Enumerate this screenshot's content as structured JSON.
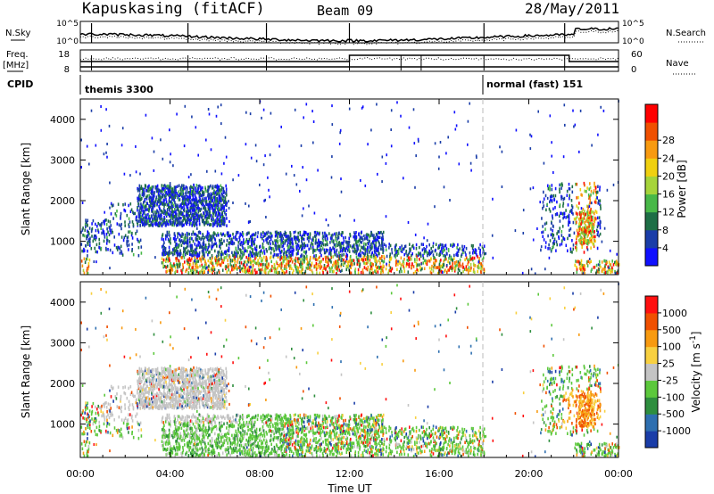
{
  "header": {
    "station": "Kapuskasing (fitACF)",
    "beam": "Beam 09",
    "date": "28/May/2011"
  },
  "panels": {
    "nsky_label": "N.Sky",
    "nsearch_label": "N.Search",
    "freq_label_top": "Freq.",
    "freq_label_unit": "[MHz]",
    "nave_label": "Nave",
    "cpid_label": "CPID",
    "nsky_ticks": [
      "10^5",
      "10^0"
    ],
    "nsearch_ticks": [
      "10^5",
      "10^0"
    ],
    "freq_ticks": [
      "18",
      "8"
    ],
    "nave_ticks": [
      "60",
      "0"
    ],
    "cpid_segments": [
      "themis 3300",
      "normal (fast) 151"
    ]
  },
  "chart_data": [
    {
      "type": "heatmap",
      "name": "power",
      "ylabel": "Slant Range [km]",
      "ylim": [
        180,
        4500
      ],
      "yticks": [
        "1000",
        "2000",
        "3000",
        "4000"
      ],
      "colorbar_label": "Power [dB]",
      "colorbar_ticks": [
        "4",
        "8",
        "12",
        "16",
        "20",
        "24",
        "28"
      ],
      "colorbar_colors": [
        "#1010ff",
        "#1a3da8",
        "#1e6e46",
        "#48b848",
        "#a6d43a",
        "#f0d010",
        "#f89a10",
        "#f05000",
        "#ff0000"
      ],
      "regions": [
        {
          "t": [
            0.0,
            0.4
          ],
          "r": [
            180,
            1500
          ],
          "density": 0.18
        },
        {
          "t": [
            0.3,
            1.3
          ],
          "r": [
            700,
            1500
          ],
          "density": 0.15
        },
        {
          "t": [
            1.3,
            2.7
          ],
          "r": [
            600,
            1900
          ],
          "density": 0.1
        },
        {
          "t": [
            2.5,
            6.5
          ],
          "r": [
            1350,
            2350
          ],
          "density": 0.45
        },
        {
          "t": [
            3.6,
            13.5
          ],
          "r": [
            180,
            1200
          ],
          "density": 0.28
        },
        {
          "t": [
            13.5,
            18.0
          ],
          "r": [
            180,
            900
          ],
          "density": 0.22
        },
        {
          "t": [
            20.5,
            23.2
          ],
          "r": [
            700,
            2400
          ],
          "density": 0.12
        },
        {
          "t": [
            22.2,
            22.9
          ],
          "r": [
            900,
            1700
          ],
          "density": 0.5
        },
        {
          "t": [
            22.0,
            24.0
          ],
          "r": [
            180,
            500
          ],
          "density": 0.25
        }
      ]
    },
    {
      "type": "heatmap",
      "name": "velocity",
      "ylabel": "Slant Range [km]",
      "ylim": [
        180,
        4500
      ],
      "yticks": [
        "1000",
        "2000",
        "3000",
        "4000"
      ],
      "colorbar_label": "Velocity [m s^-1]",
      "colorbar_ticks": [
        "1000",
        "500",
        "100",
        "25",
        "-25",
        "-100",
        "-500",
        "-1000"
      ],
      "colorbar_colors": [
        "#1a3da8",
        "#2e6fb0",
        "#2e8e3e",
        "#5cc83c",
        "#c4c4c4",
        "#f8d040",
        "#f89a10",
        "#f05000",
        "#ff1010"
      ]
    }
  ],
  "x_axis": {
    "xlabel": "Time UT",
    "ticks": [
      "00:00",
      "04:00",
      "08:00",
      "12:00",
      "16:00",
      "20:00",
      "00:00"
    ],
    "xlim": [
      0,
      24
    ]
  }
}
